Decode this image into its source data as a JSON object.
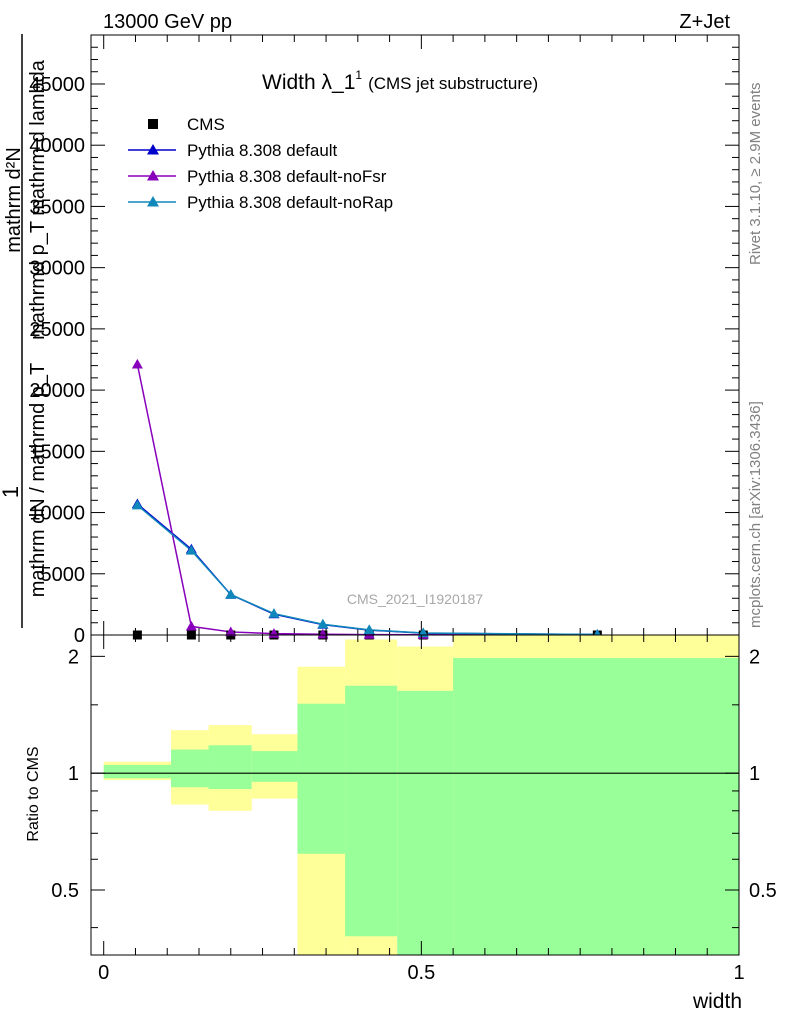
{
  "header": {
    "beam": "13000 GeV pp",
    "process": "Z+Jet",
    "title_main": "Width λ_1",
    "title_sup": "1",
    "title_note": "(CMS jet substructure)",
    "analysis_id": "CMS_2021_I1920187",
    "rivet_note": "Rivet 3.1.10, ≥ 2.9M events",
    "site_note": "mcplots.cern.ch [arXiv:1306.3436]"
  },
  "axes": {
    "ylabel_upper_frac_num": "1",
    "ylabel_upper_frac_den": "mathrm dN / mathrmd p_T",
    "ylabel_upper_frac_den_sub": "T",
    "ylabel_upper_main_num": "mathrm d²N",
    "ylabel_upper_main_den": "mathrmd p_T mathrm d lambda",
    "ylabel_ratio": "Ratio to CMS",
    "xlabel": "width"
  },
  "chart_data": [
    {
      "type": "line",
      "panel": "main",
      "xlim": [
        -0.02,
        1.0
      ],
      "ylim": [
        0,
        49000
      ],
      "yticks": [
        {
          "v": 5000,
          "label": "5000"
        },
        {
          "v": 10000,
          "label": "10000"
        },
        {
          "v": 15000,
          "label": "15000"
        },
        {
          "v": 20000,
          "label": "20000"
        },
        {
          "v": 25000,
          "label": "25000"
        },
        {
          "v": 30000,
          "label": "30000"
        },
        {
          "v": 35000,
          "label": "35000"
        },
        {
          "v": 40000,
          "label": "40000"
        },
        {
          "v": 45000,
          "label": "45000"
        },
        {
          "v": 0,
          "label": "0"
        }
      ],
      "series": [
        {
          "name": "CMS",
          "style": "square",
          "color": "#000000",
          "x": [
            0.053,
            0.138,
            0.2,
            0.268,
            0.345,
            0.418,
            0.503,
            0.777
          ],
          "y": [
            0,
            0,
            0,
            0,
            0,
            0,
            0,
            0
          ]
        },
        {
          "name": "Pythia 8.308 default",
          "style": "triangle",
          "color": "#0000cc",
          "x": [
            0.053,
            0.138,
            0.2,
            0.268,
            0.345,
            0.418,
            0.503,
            0.777
          ],
          "y": [
            10700,
            7000,
            3300,
            1700,
            850,
            400,
            150,
            40
          ]
        },
        {
          "name": "Pythia 8.308 default-noFsr",
          "style": "triangle",
          "color": "#8800bb",
          "x": [
            0.053,
            0.138,
            0.2,
            0.268,
            0.345,
            0.418,
            0.503,
            0.777
          ],
          "y": [
            22100,
            700,
            250,
            110,
            60,
            35,
            20,
            5
          ]
        },
        {
          "name": "Pythia 8.308 default-noRap",
          "style": "triangle",
          "color": "#1188bb",
          "x": [
            0.053,
            0.138,
            0.2,
            0.268,
            0.345,
            0.418,
            0.503,
            0.777
          ],
          "y": [
            10600,
            6900,
            3300,
            1750,
            880,
            420,
            160,
            45
          ]
        }
      ]
    },
    {
      "type": "area",
      "panel": "ratio",
      "xlim": [
        -0.02,
        1.0
      ],
      "ylim": [
        0.34,
        2.27
      ],
      "xticks": [
        {
          "v": 0,
          "label": "0"
        },
        {
          "v": 0.5,
          "label": "0.5"
        },
        {
          "v": 1,
          "label": "1"
        }
      ],
      "yticks": [
        {
          "v": 0.5,
          "label": "0.5"
        },
        {
          "v": 1,
          "label": "1"
        },
        {
          "v": 2,
          "label": "2"
        }
      ],
      "bands": [
        {
          "x0": 0.0,
          "x1": 0.106,
          "yellow": [
            0.96,
            1.07
          ],
          "green": [
            0.97,
            1.05
          ]
        },
        {
          "x0": 0.106,
          "x1": 0.165,
          "yellow": [
            0.83,
            1.29
          ],
          "green": [
            0.92,
            1.15
          ]
        },
        {
          "x0": 0.165,
          "x1": 0.233,
          "yellow": [
            0.8,
            1.33
          ],
          "green": [
            0.91,
            1.18
          ]
        },
        {
          "x0": 0.233,
          "x1": 0.305,
          "yellow": [
            0.86,
            1.26
          ],
          "green": [
            0.95,
            1.14
          ]
        },
        {
          "x0": 0.305,
          "x1": 0.38,
          "yellow": [
            0.34,
            1.88
          ],
          "green": [
            0.62,
            1.51
          ]
        },
        {
          "x0": 0.38,
          "x1": 0.462,
          "yellow": [
            0.34,
            2.21
          ],
          "green": [
            0.38,
            1.68
          ]
        },
        {
          "x0": 0.462,
          "x1": 0.55,
          "yellow": [
            0.44,
            2.12
          ],
          "green": [
            0.34,
            1.63
          ]
        },
        {
          "x0": 0.55,
          "x1": 1.0,
          "yellow": [
            0.34,
            2.27
          ],
          "green": [
            0.34,
            1.98
          ]
        }
      ]
    }
  ]
}
